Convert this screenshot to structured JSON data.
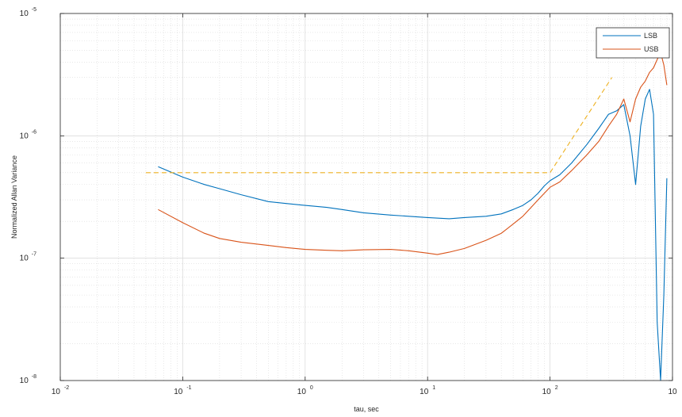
{
  "chart_data": {
    "type": "line",
    "title": "",
    "xlabel": "tau, sec",
    "ylabel": "Normalized Allan Variance",
    "xscale": "log",
    "yscale": "log",
    "xlim": [
      0.01,
      1000
    ],
    "ylim": [
      1e-08,
      1e-05
    ],
    "grid": "on (major and minor)",
    "legend_location": "top-right",
    "x_ticks": [
      {
        "base": "10",
        "exp": "-2"
      },
      {
        "base": "10",
        "exp": "-1"
      },
      {
        "base": "10",
        "exp": "0"
      },
      {
        "base": "10",
        "exp": "1"
      },
      {
        "base": "10",
        "exp": "2"
      },
      {
        "base": "10",
        "exp": ""
      }
    ],
    "y_ticks": [
      {
        "base": "10",
        "exp": "-8"
      },
      {
        "base": "10",
        "exp": "-7"
      },
      {
        "base": "10",
        "exp": "-6"
      },
      {
        "base": "10",
        "exp": "-5"
      }
    ],
    "series": [
      {
        "name": "LSB",
        "color": "#0072BD",
        "x": [
          0.063,
          0.1,
          0.15,
          0.2,
          0.3,
          0.5,
          0.7,
          1.0,
          1.5,
          2,
          3,
          5,
          7,
          10,
          15,
          20,
          30,
          40,
          50,
          60,
          70,
          80,
          90,
          100,
          120,
          150,
          200,
          250,
          300,
          350,
          400,
          450,
          500,
          550,
          600,
          650,
          700,
          750,
          800,
          850,
          900
        ],
        "y": [
          5.6e-07,
          4.6e-07,
          4e-07,
          3.7e-07,
          3.3e-07,
          2.9e-07,
          2.8e-07,
          2.7e-07,
          2.6e-07,
          2.5e-07,
          2.35e-07,
          2.25e-07,
          2.2e-07,
          2.15e-07,
          2.1e-07,
          2.15e-07,
          2.2e-07,
          2.3e-07,
          2.5e-07,
          2.7e-07,
          3e-07,
          3.4e-07,
          3.9e-07,
          4.3e-07,
          4.8e-07,
          6e-07,
          8.5e-07,
          1.15e-06,
          1.5e-06,
          1.6e-06,
          1.8e-06,
          1e-06,
          4e-07,
          1.2e-06,
          2e-06,
          2.4e-06,
          1.5e-06,
          3e-08,
          1e-08,
          5e-08,
          4.5e-07
        ]
      },
      {
        "name": "USB",
        "color": "#D95319",
        "x": [
          0.063,
          0.1,
          0.15,
          0.2,
          0.3,
          0.5,
          0.7,
          1.0,
          1.5,
          2,
          3,
          5,
          7,
          10,
          12,
          15,
          20,
          30,
          40,
          50,
          60,
          70,
          80,
          90,
          100,
          120,
          150,
          200,
          250,
          300,
          350,
          400,
          450,
          500,
          550,
          600,
          650,
          700,
          750,
          800,
          850,
          900
        ],
        "y": [
          2.5e-07,
          1.95e-07,
          1.6e-07,
          1.45e-07,
          1.35e-07,
          1.27e-07,
          1.22e-07,
          1.18e-07,
          1.16e-07,
          1.15e-07,
          1.17e-07,
          1.18e-07,
          1.15e-07,
          1.1e-07,
          1.07e-07,
          1.12e-07,
          1.2e-07,
          1.4e-07,
          1.6e-07,
          1.9e-07,
          2.2e-07,
          2.6e-07,
          3e-07,
          3.4e-07,
          3.8e-07,
          4.2e-07,
          5.2e-07,
          7e-07,
          9e-07,
          1.2e-06,
          1.5e-06,
          2e-06,
          1.3e-06,
          2e-06,
          2.5e-06,
          2.8e-06,
          3.3e-06,
          3.6e-06,
          4.2e-06,
          4.8e-06,
          3.8e-06,
          2.6e-06
        ]
      },
      {
        "name": "",
        "color": "#EDB120",
        "style": "dashed",
        "x": [
          0.05,
          100,
          100,
          320
        ],
        "y": [
          5e-07,
          5e-07,
          5e-07,
          3e-06
        ]
      }
    ]
  }
}
